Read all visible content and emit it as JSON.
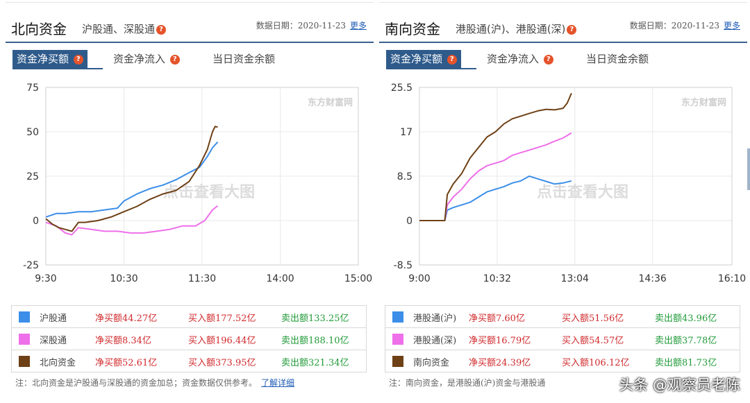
{
  "panels": [
    {
      "title": "北向资金",
      "subtitle": "沪股通、深股通",
      "date_label": "数据日期：2020-11-23",
      "more_label": "更多",
      "tabs": [
        "资金净买额",
        "资金净流入",
        "当日资金余额"
      ],
      "chart_watermark": "点击查看大图",
      "logo_text": "东方财富网",
      "legend": [
        {
          "name": "沪股通",
          "net": "净买额44.27亿",
          "buy": "买入额177.52亿",
          "sell": "卖出额133.25亿",
          "color": "#3c8ee8"
        },
        {
          "name": "深股通",
          "net": "净买额8.34亿",
          "buy": "买入额196.44亿",
          "sell": "卖出额188.10亿",
          "color": "#ee6fe9"
        },
        {
          "name": "北向资金",
          "net": "净买额52.61亿",
          "buy": "买入额373.95亿",
          "sell": "卖出额321.34亿",
          "color": "#6e4016"
        }
      ],
      "note": "注：北向资金是沪股通与深股通的资金加总；资金数据仅供参考。",
      "note_link": "了解详细"
    },
    {
      "title": "南向资金",
      "subtitle": "港股通(沪)、港股通(深)",
      "date_label": "数据日期：2020-11-23",
      "more_label": "更多",
      "tabs": [
        "资金净买额",
        "资金净流入",
        "当日资金余额"
      ],
      "chart_watermark": "点击查看大图",
      "logo_text": "东方财富网",
      "legend": [
        {
          "name": "港股通(沪)",
          "net": "净买额7.60亿",
          "buy": "买入额51.56亿",
          "sell": "卖出额43.96亿",
          "color": "#3c8ee8"
        },
        {
          "name": "港股通(深)",
          "net": "净买额16.79亿",
          "buy": "买入额54.57亿",
          "sell": "卖出额37.78亿",
          "color": "#ee6fe9"
        },
        {
          "name": "南向资金",
          "net": "净买额24.39亿",
          "buy": "买入额106.12亿",
          "sell": "卖出额81.73亿",
          "color": "#6e4016"
        }
      ],
      "note": "注：南向资金，是港股通(沪)资金与港股通",
      "note_link": ""
    }
  ],
  "watermark": "头条 @观察员老陈",
  "chart_data": [
    {
      "type": "line",
      "x_tick_labels": [
        "9:30",
        "10:30",
        "11:30",
        "14:00",
        "15:00"
      ],
      "x_unit": "trading minutes from 9:30",
      "x_ticks": [
        0,
        60,
        120,
        180,
        240
      ],
      "xlim": [
        0,
        240
      ],
      "ylim": [
        -25,
        75
      ],
      "y_ticks": [
        -25,
        0,
        25,
        50,
        75
      ],
      "grid": true,
      "series": [
        {
          "name": "沪股通",
          "color": "#3c8ee8",
          "x": [
            0,
            8,
            15,
            25,
            35,
            45,
            55,
            60,
            70,
            80,
            90,
            100,
            110,
            118,
            124,
            128,
            132
          ],
          "y": [
            2,
            4,
            4,
            5,
            5,
            6,
            7,
            11,
            15,
            18,
            20,
            23,
            27,
            30,
            36,
            41,
            44.27
          ]
        },
        {
          "name": "深股通",
          "color": "#ee6fe9",
          "x": [
            0,
            8,
            15,
            20,
            25,
            35,
            45,
            55,
            65,
            75,
            85,
            95,
            105,
            115,
            122,
            128,
            132
          ],
          "y": [
            -1,
            -3,
            -7,
            -8,
            -4,
            -5,
            -6,
            -6,
            -7,
            -7,
            -6,
            -5,
            -3,
            -3,
            0,
            6,
            8.34
          ]
        },
        {
          "name": "北向资金",
          "color": "#6e4016",
          "x": [
            0,
            5,
            10,
            15,
            20,
            25,
            30,
            40,
            50,
            60,
            70,
            80,
            90,
            100,
            110,
            118,
            124,
            128,
            130,
            132
          ],
          "y": [
            1,
            -2,
            -4,
            -5,
            -6,
            -1,
            -1,
            0,
            2,
            5,
            8,
            12,
            15,
            17,
            22,
            31,
            40,
            50,
            53,
            52.61
          ]
        }
      ]
    },
    {
      "type": "line",
      "x_tick_labels": [
        "9:00",
        "10:32",
        "13:04",
        "14:36",
        "16:10"
      ],
      "x_unit": "minutes from 9:00",
      "x_ticks": [
        0,
        92,
        184,
        276,
        370
      ],
      "xlim": [
        0,
        370
      ],
      "ylim": [
        -8.5,
        25.5
      ],
      "y_ticks": [
        -8.5,
        0,
        8.5,
        17,
        25.5
      ],
      "grid": true,
      "series": [
        {
          "name": "港股通(沪)",
          "color": "#3c8ee8",
          "x": [
            0,
            30,
            33,
            40,
            50,
            60,
            70,
            80,
            90,
            100,
            110,
            120,
            130,
            140,
            150,
            160,
            170,
            180
          ],
          "y": [
            0,
            0,
            2,
            2.5,
            3,
            3.5,
            4.5,
            5.5,
            6,
            6.5,
            7.2,
            7.6,
            8.5,
            8,
            7.5,
            7,
            7.2,
            7.6
          ]
        },
        {
          "name": "港股通(深)",
          "color": "#ee6fe9",
          "x": [
            0,
            30,
            33,
            40,
            50,
            60,
            70,
            80,
            90,
            100,
            110,
            120,
            130,
            140,
            150,
            160,
            170,
            180
          ],
          "y": [
            0,
            0,
            3,
            4.5,
            6,
            8,
            9.5,
            10.5,
            11,
            11.5,
            12.5,
            13,
            13.5,
            14,
            14.5,
            15.2,
            15.8,
            16.79
          ]
        },
        {
          "name": "南向资金",
          "color": "#6e4016",
          "x": [
            0,
            30,
            33,
            40,
            50,
            60,
            70,
            80,
            90,
            100,
            110,
            120,
            130,
            140,
            150,
            160,
            170,
            175,
            180
          ],
          "y": [
            0,
            0,
            5,
            7,
            9,
            12,
            14,
            16,
            17,
            18.5,
            19.5,
            20,
            20.5,
            21,
            21.3,
            21.2,
            21.5,
            22.5,
            24.39
          ]
        }
      ]
    }
  ]
}
